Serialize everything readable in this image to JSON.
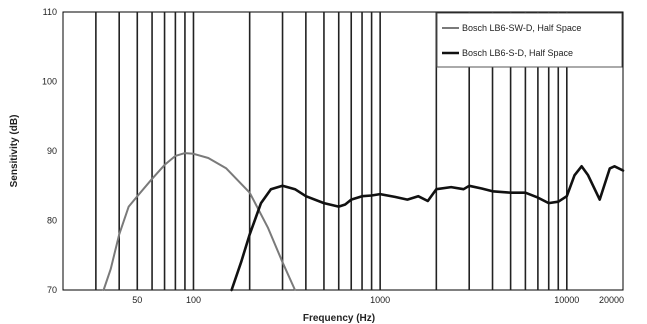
{
  "chart_data": {
    "type": "line",
    "title": "",
    "xlabel": "Frequency (Hz)",
    "ylabel": "Sensitivity (dB)",
    "x_scale": "log",
    "xlim": [
      20,
      20000
    ],
    "ylim": [
      70,
      110
    ],
    "x_ticks": [
      50,
      100,
      1000,
      10000,
      20000
    ],
    "x_tick_labels": [
      "50",
      "100",
      "1000",
      "10000",
      "20000"
    ],
    "y_ticks": [
      70,
      80,
      90,
      100,
      110
    ],
    "y_tick_labels": [
      "70",
      "80",
      "90",
      "100",
      "110"
    ],
    "grid": "vertical",
    "legend_position": "top-right",
    "series": [
      {
        "name": "Bosch LB6-SW-D, Half Space",
        "color": "#7a7a7a",
        "x": [
          33,
          36,
          40,
          45,
          50,
          60,
          70,
          80,
          90,
          100,
          120,
          150,
          200,
          250,
          300,
          350
        ],
        "y": [
          70,
          73,
          78,
          82,
          83.5,
          86,
          88,
          89.3,
          89.7,
          89.6,
          89,
          87.5,
          84,
          79,
          74,
          70
        ]
      },
      {
        "name": "Bosch LB6-S-D, Half Space",
        "color": "#111111",
        "x": [
          160,
          180,
          200,
          230,
          260,
          300,
          350,
          400,
          500,
          600,
          650,
          700,
          800,
          900,
          1000,
          1200,
          1400,
          1600,
          1800,
          2000,
          2400,
          2800,
          3000,
          3500,
          4000,
          5000,
          6000,
          7000,
          8000,
          9000,
          10000,
          11000,
          12000,
          13000,
          15000,
          17000,
          18000,
          20000
        ],
        "y": [
          70,
          74,
          78,
          82.5,
          84.5,
          85,
          84.5,
          83.5,
          82.5,
          82,
          82.3,
          83,
          83.5,
          83.6,
          83.8,
          83.4,
          83,
          83.5,
          82.8,
          84.5,
          84.8,
          84.5,
          85,
          84.6,
          84.2,
          84,
          84,
          83.3,
          82.5,
          82.7,
          83.5,
          86.5,
          87.8,
          86.5,
          83,
          87.5,
          87.8,
          87.2
        ]
      }
    ]
  }
}
